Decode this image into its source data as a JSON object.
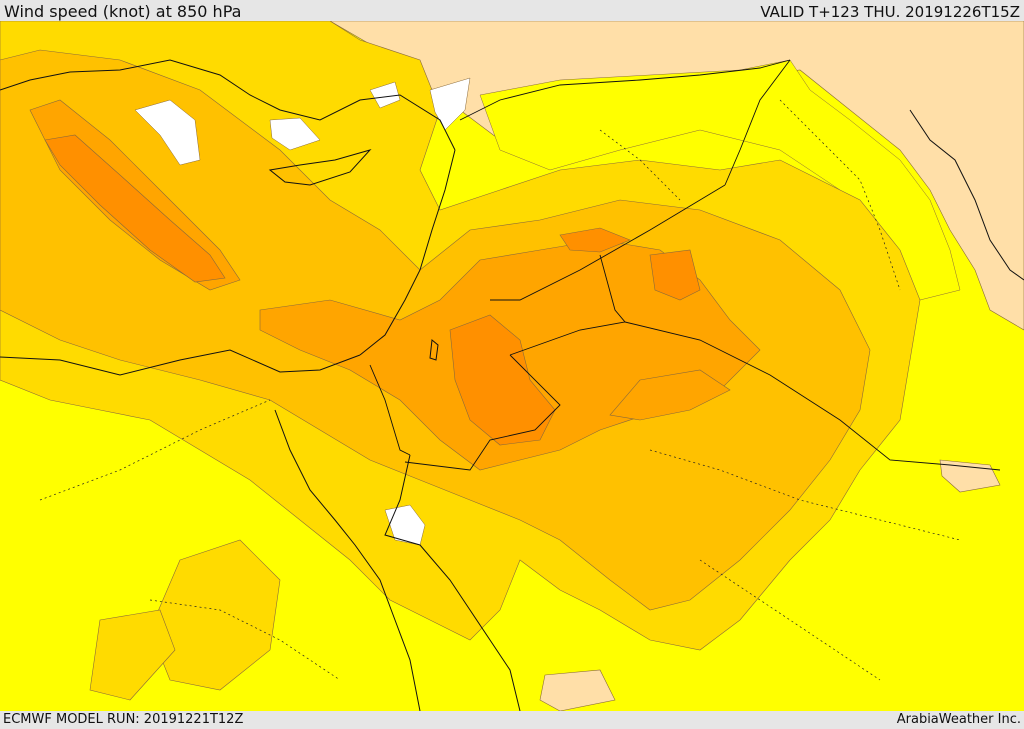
{
  "header": {
    "title": "Wind speed (knot) at 850 hPa",
    "valid_time": "VALID T+123 THU. 20191226T15Z"
  },
  "footer": {
    "model_run": "ECMWF MODEL RUN: 20191221T12Z",
    "credit": "ArabiaWeather Inc."
  },
  "map": {
    "variable": "Wind speed at 850 hPa",
    "units": "knot",
    "fill_colors": {
      "lowest": "#ffffff",
      "light": "#ffdfa8",
      "base": "#ffff00",
      "moderate": "#ffdb00",
      "high": "#ffc100",
      "higher": "#ffa500",
      "highest": "#ff9000"
    }
  }
}
